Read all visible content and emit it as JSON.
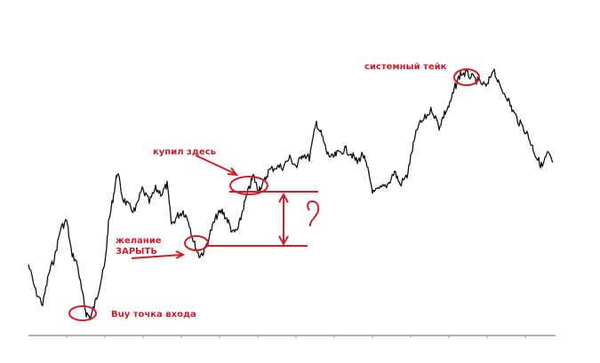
{
  "chart_data": {
    "type": "line",
    "title": "",
    "xlabel": "",
    "ylabel": "",
    "grid": false,
    "ylim": [
      0,
      310
    ],
    "x": [
      0,
      8,
      16,
      23,
      30,
      36,
      43,
      48,
      55,
      60,
      65,
      70,
      76,
      81,
      86,
      90,
      96,
      100,
      106,
      113,
      120,
      128,
      136,
      143,
      150,
      156,
      161,
      168,
      174,
      180,
      186,
      192,
      198,
      206,
      212,
      218,
      224,
      230,
      236,
      242,
      248,
      253,
      258,
      264,
      270,
      278,
      286,
      294,
      302,
      308,
      316,
      324,
      330,
      336,
      342,
      348,
      356,
      363,
      370,
      376,
      382,
      388,
      396,
      404,
      412,
      418,
      426,
      432,
      438,
      446,
      454,
      462,
      468,
      474,
      480,
      486,
      493,
      500,
      508,
      516,
      523,
      530,
      538,
      544,
      552,
      560,
      566,
      572,
      578,
      584,
      590
    ],
    "values": [
      80,
      50,
      35,
      70,
      90,
      120,
      130,
      95,
      80,
      50,
      25,
      20,
      40,
      60,
      80,
      125,
      160,
      185,
      155,
      145,
      140,
      165,
      150,
      165,
      160,
      170,
      125,
      135,
      140,
      130,
      105,
      90,
      95,
      120,
      135,
      140,
      130,
      115,
      120,
      145,
      165,
      180,
      165,
      170,
      185,
      190,
      190,
      200,
      190,
      205,
      200,
      240,
      225,
      205,
      200,
      205,
      210,
      205,
      195,
      205,
      185,
      160,
      165,
      170,
      185,
      170,
      180,
      210,
      235,
      245,
      255,
      235,
      250,
      260,
      280,
      295,
      295,
      290,
      285,
      280,
      302,
      280,
      270,
      255,
      240,
      230,
      215,
      200,
      190,
      205,
      195
    ],
    "annotations": {
      "take": "системный тейк",
      "bought": "купил здесь",
      "wish_line1": "желание",
      "wish_line2": "ЗАРЫТЬ",
      "entry": "Buy точка входа",
      "question": "?"
    },
    "colors": {
      "price": "#111111",
      "annotation": "#c8202a",
      "axis": "#999999"
    }
  }
}
